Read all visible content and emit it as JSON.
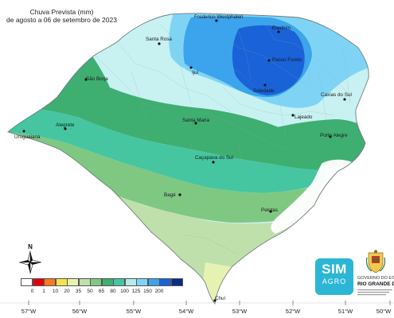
{
  "title": {
    "line1": "Chuva Prevista (mm)",
    "line2": "de agosto a 06 de setembro de 2023"
  },
  "cities": [
    {
      "name": "Frederico Westphalen"
    },
    {
      "name": "Erechim"
    },
    {
      "name": "Santa Rosa"
    },
    {
      "name": "Passo Fundo"
    },
    {
      "name": "Ijuí"
    },
    {
      "name": "Soledade"
    },
    {
      "name": "São Borja"
    },
    {
      "name": "Caxias do Sul"
    },
    {
      "name": "Santa Maria"
    },
    {
      "name": "Lajeado"
    },
    {
      "name": "Alegrete"
    },
    {
      "name": "Porto Alegre"
    },
    {
      "name": "Uruguaiana"
    },
    {
      "name": "Caçapava do Sul"
    },
    {
      "name": "Bagé"
    },
    {
      "name": "Pelotas"
    },
    {
      "name": "Chuí"
    }
  ],
  "longitude_labels": [
    "57°W",
    "56°W",
    "55°W",
    "54°W",
    "53°W",
    "52°W",
    "51°W",
    "50°W"
  ],
  "compass": {
    "label": "N"
  },
  "legend": {
    "ticks": [
      "0",
      "1",
      "10",
      "20",
      "35",
      "50",
      "65",
      "80",
      "100",
      "125",
      "150",
      "200"
    ],
    "colors": [
      "#ffffff",
      "#e3000b",
      "#f77b1c",
      "#f6e34b",
      "#e6f2b2",
      "#bfe0aa",
      "#7fc882",
      "#3fae71",
      "#45c6a0",
      "#b4ecee",
      "#7fd4f5",
      "#3ba4ec",
      "#1a62d8",
      "#0b2b86"
    ]
  },
  "logos": {
    "simagro_top": "SIM",
    "simagro_bottom": "AGRO",
    "gov_line1": "GOVERNO DO ESTADO",
    "gov_line2": "RIO GRANDE DO SUL"
  }
}
